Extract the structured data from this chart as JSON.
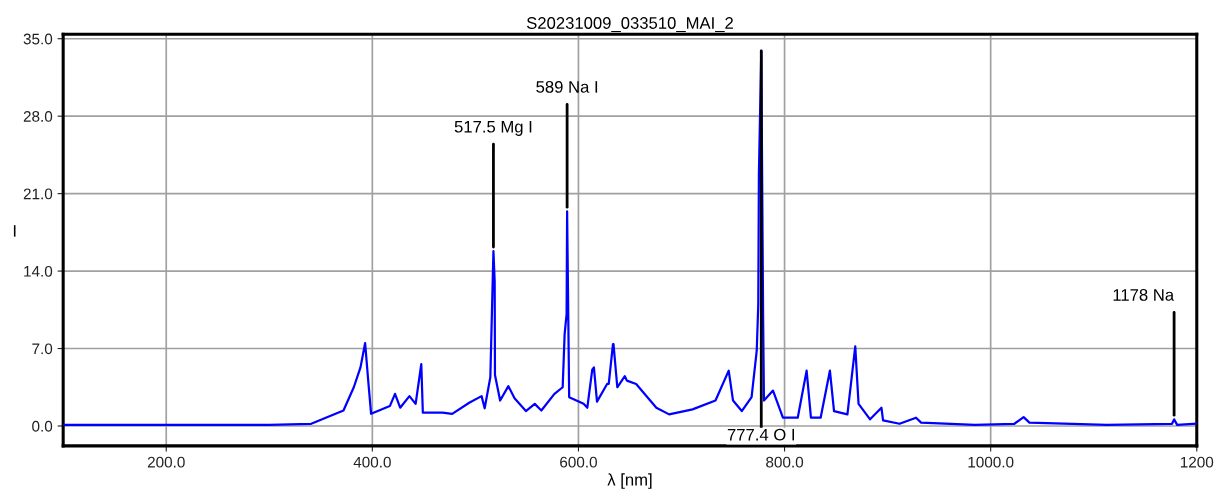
{
  "chart_data": {
    "type": "line",
    "title": "S20231009_033510_MAI_2",
    "xlabel": "λ [nm]",
    "ylabel": "I",
    "xlim": [
      100,
      1200
    ],
    "ylim": [
      -1.8,
      35.4
    ],
    "xticks": [
      {
        "value": 200,
        "label": "200.0"
      },
      {
        "value": 400,
        "label": "400.0"
      },
      {
        "value": 600,
        "label": "600.0"
      },
      {
        "value": 800,
        "label": "800.0"
      },
      {
        "value": 1000,
        "label": "1000.0"
      },
      {
        "value": 1200,
        "label": "1200"
      }
    ],
    "yticks": [
      {
        "value": 0,
        "label": "0.0"
      },
      {
        "value": 7,
        "label": "7.0"
      },
      {
        "value": 14,
        "label": "14.0"
      },
      {
        "value": 21,
        "label": "21.0"
      },
      {
        "value": 28,
        "label": "28.0"
      },
      {
        "value": 35,
        "label": "35.0"
      }
    ],
    "grid": true,
    "legend": false,
    "series": [
      {
        "color": "#0000ff",
        "x": [
          100,
          150,
          200,
          250,
          300,
          340.7,
          372,
          382,
          388.5,
          393,
          396,
          398.8,
          417,
          422,
          427,
          436,
          442,
          447.5,
          449,
          468,
          477.5,
          494,
          506,
          509,
          514.5,
          517.5,
          518.7,
          519,
          524,
          532,
          538,
          549,
          557.6,
          564,
          576.7,
          584.7,
          586.6,
          588.5,
          589,
          591,
          605,
          608.6,
          613.4,
          615,
          618,
          627.8,
          629.4,
          633.5,
          634,
          637.7,
          645,
          647,
          656,
          675.6,
          688,
          710.7,
          733,
          745.8,
          750,
          758.5,
          768,
          773,
          774.5,
          775.1,
          777.4,
          779.2,
          780,
          788.8,
          798.4,
          812.8,
          821.4,
          825.6,
          835,
          844,
          848,
          861,
          868.6,
          871.8,
          883,
          894,
          895.6,
          911.6,
          927.6,
          932.5,
          984.7,
          1023,
          1032,
          1037.6,
          1112.6,
          1176,
          1178,
          1181,
          1199
        ],
        "values": [
          0.1,
          0.1,
          0.1,
          0.1,
          0.1,
          0.2,
          1.4,
          3.5,
          5.3,
          7.5,
          4.1,
          1.1,
          1.8,
          2.9,
          1.65,
          2.7,
          2.0,
          5.6,
          1.2,
          1.2,
          1.1,
          2.1,
          2.7,
          1.6,
          4.4,
          15.8,
          13.1,
          4.6,
          2.3,
          3.6,
          2.5,
          1.35,
          2.0,
          1.4,
          2.9,
          3.5,
          8.3,
          10.1,
          19.4,
          2.6,
          2.0,
          1.65,
          5.1,
          5.3,
          2.2,
          3.8,
          3.8,
          7.4,
          7.4,
          3.5,
          4.5,
          4.1,
          3.8,
          1.65,
          1.05,
          1.5,
          2.3,
          5.0,
          2.3,
          1.35,
          2.6,
          6.8,
          11.0,
          22.8,
          33.9,
          9.8,
          2.3,
          3.2,
          0.75,
          0.75,
          5.0,
          0.75,
          0.75,
          5.0,
          1.35,
          1.05,
          7.2,
          2.0,
          0.6,
          1.65,
          0.5,
          0.2,
          0.75,
          0.3,
          0.1,
          0.2,
          0.8,
          0.3,
          0.1,
          0.2,
          0.6,
          0.1,
          0.2
        ]
      }
    ],
    "annotations": [
      {
        "text": "517.5 Mg I",
        "x": 517.5,
        "y": 15.8
      },
      {
        "text": "589 Na I",
        "x": 589,
        "y": 19.4
      },
      {
        "text": "777.4 O I",
        "x": 777.4,
        "y": 33.9
      },
      {
        "text": "1178 Na",
        "x": 1178,
        "y": 0.6
      }
    ]
  }
}
